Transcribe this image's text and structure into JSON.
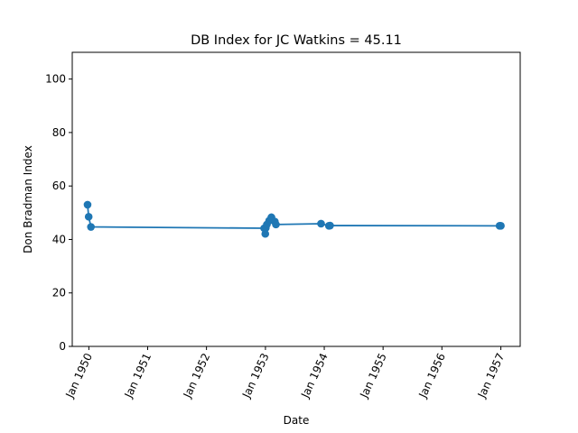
{
  "chart_data": {
    "type": "line",
    "title": "DB Index for JC Watkins = 45.11",
    "xlabel": "Date",
    "ylabel": "Don Bradman Index",
    "ylim": [
      0,
      110
    ],
    "y_ticks": [
      0,
      20,
      40,
      60,
      80,
      100
    ],
    "x_ticks": [
      "Jan 1950",
      "Jan 1951",
      "Jan 1952",
      "Jan 1953",
      "Jan 1954",
      "Jan 1955",
      "Jan 1956",
      "Jan 1957"
    ],
    "xlim": [
      "1949-09-20",
      "1957-05-01"
    ],
    "grid": false,
    "color": "#1f77b4",
    "series": [
      {
        "x": [
          "1949-12-24",
          "1949-12-31",
          "1950-01-14",
          "1952-12-24",
          "1952-12-31",
          "1953-01-03",
          "1953-01-10",
          "1953-01-24",
          "1953-02-07",
          "1953-02-28",
          "1953-03-07",
          "1953-12-12",
          "1954-01-30",
          "1954-02-06",
          "1956-12-24",
          "1957-01-01"
        ],
        "values": [
          53.0,
          48.5,
          44.7,
          44.2,
          42.1,
          44.3,
          45.6,
          47.0,
          48.3,
          46.7,
          45.6,
          45.9,
          45.1,
          45.2,
          45.1,
          45.11
        ]
      }
    ]
  }
}
